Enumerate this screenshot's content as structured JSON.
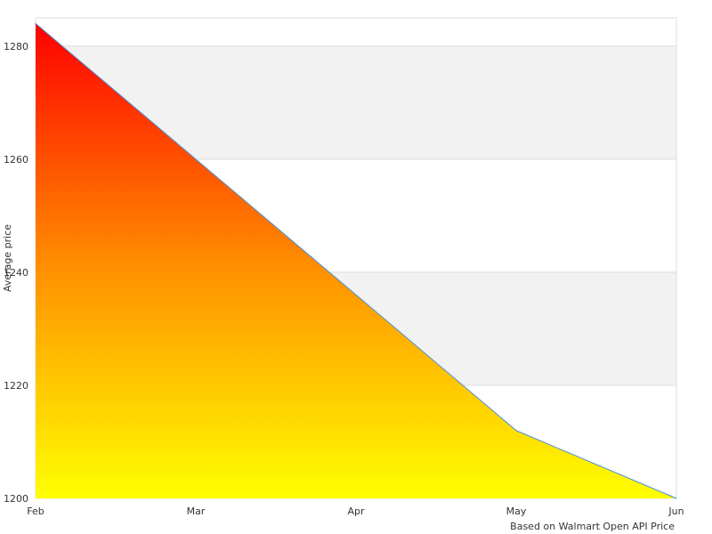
{
  "chart_data": {
    "type": "area",
    "title": "",
    "xlabel": "",
    "ylabel": "Average price",
    "credit": "Based on Walmart Open API Price",
    "categories": [
      "Feb",
      "Mar",
      "Apr",
      "May",
      "Jun"
    ],
    "x": [
      0,
      1,
      2,
      3,
      4
    ],
    "values": [
      1284,
      1260,
      1236,
      1212,
      1200
    ],
    "ylim": [
      1200,
      1285
    ],
    "yticks": [
      1200,
      1220,
      1240,
      1260,
      1280
    ],
    "grid": true,
    "legend": "none",
    "colors": {
      "line": "#4a90d9",
      "gradient_top": "#ff0000",
      "gradient_mid": "#ff8c00",
      "gradient_bottom": "#ffff00",
      "band": "#f2f2f2",
      "gridline": "#dddddd"
    }
  }
}
